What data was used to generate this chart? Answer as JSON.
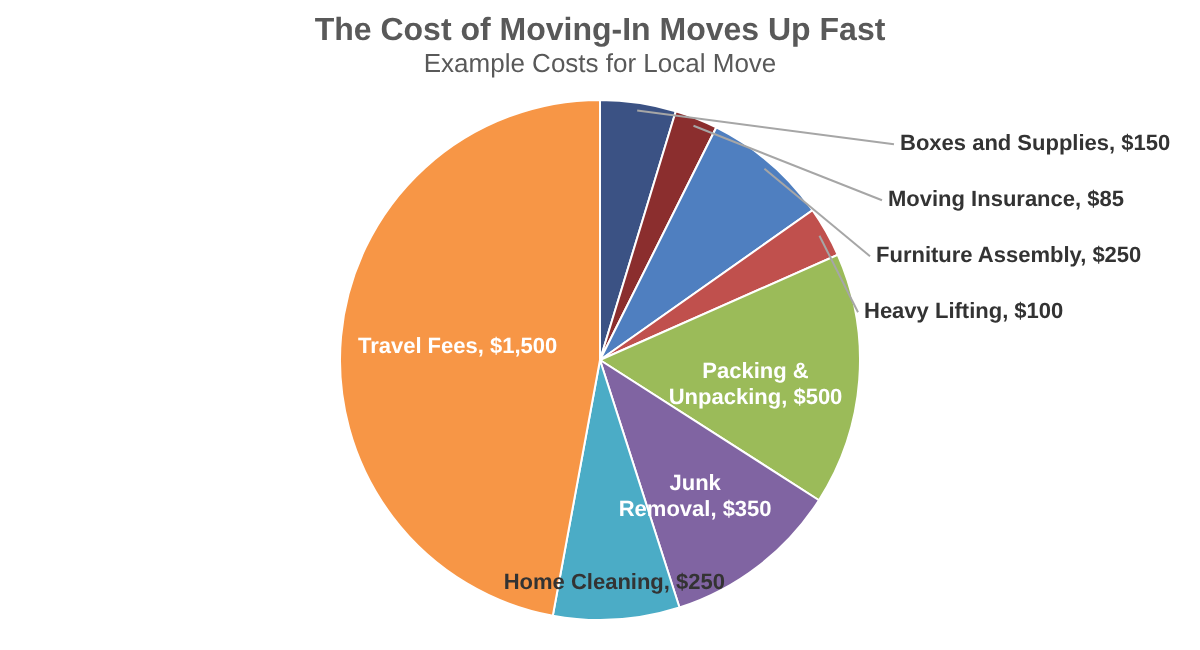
{
  "chart_data": {
    "type": "pie",
    "title": "The Cost of Moving-In Moves Up Fast",
    "subtitle": "Example Costs for Local Move",
    "categories": [
      "Boxes and Supplies",
      "Moving Insurance",
      "Furniture Assembly",
      "Heavy Lifting",
      "Packing & Unpacking",
      "Junk Removal",
      "Home Cleaning",
      "Travel Fees"
    ],
    "values": [
      150,
      85,
      250,
      100,
      500,
      350,
      250,
      1500
    ],
    "colors": [
      "#3b5284",
      "#8b2e2e",
      "#4f7fc0",
      "#c0504d",
      "#9bbb59",
      "#8064a2",
      "#4bacc6",
      "#f79646"
    ],
    "value_labels": [
      "$150",
      "$85",
      "$250",
      "$100",
      "$500",
      "$350",
      "$250",
      "$1,500"
    ]
  }
}
